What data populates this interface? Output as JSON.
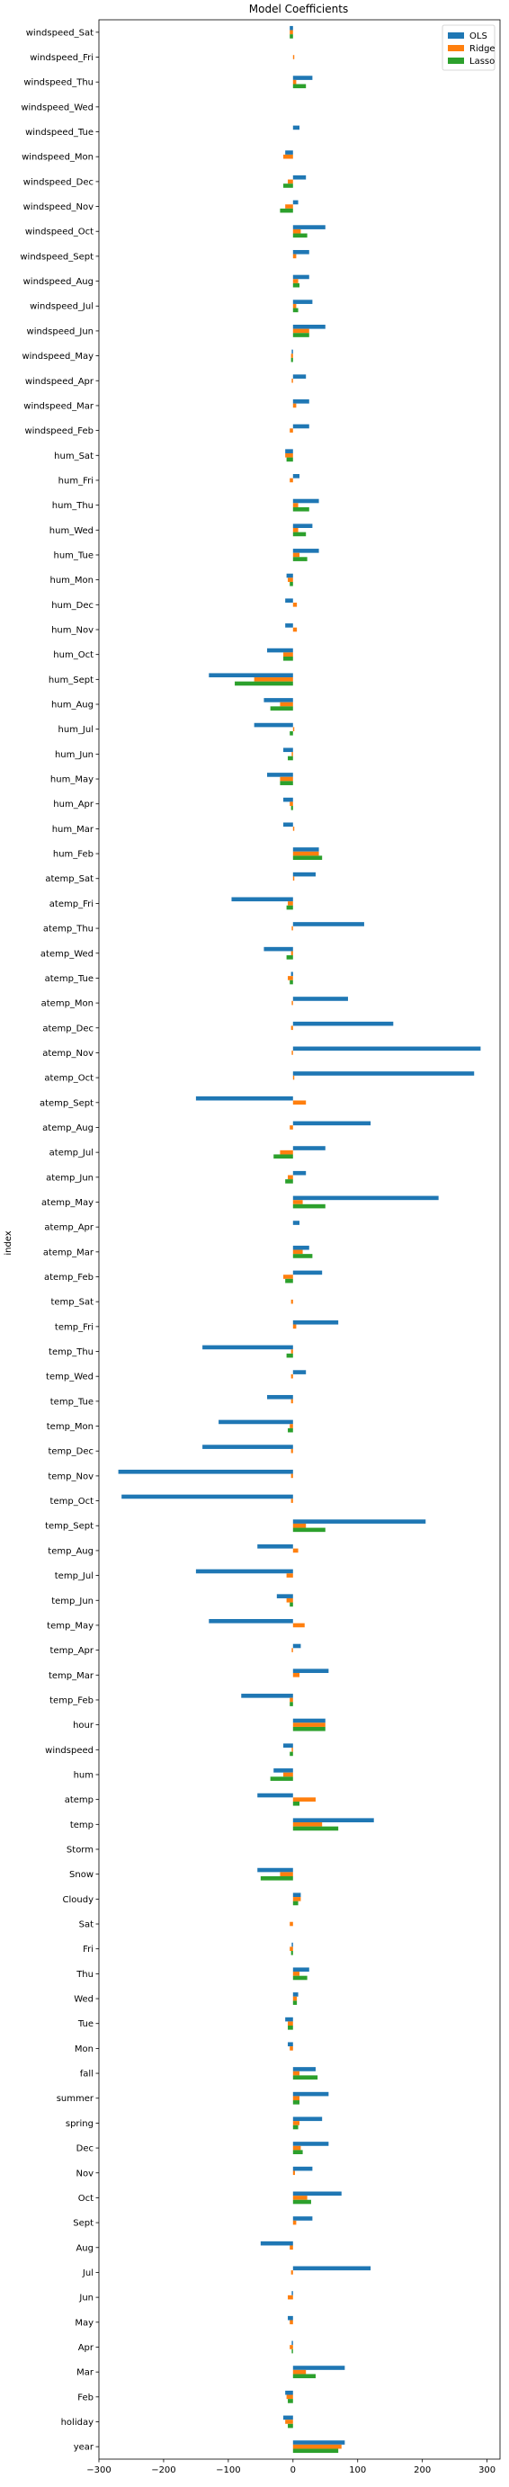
{
  "chart_data": {
    "type": "bar",
    "orientation": "horizontal",
    "title": "Model Coefficients",
    "ylabel": "index",
    "xlabel": "",
    "xlim": [
      -300,
      320
    ],
    "xticks": [
      -300,
      -200,
      -100,
      0,
      100,
      200,
      300
    ],
    "grid": false,
    "legend_position": "top-right",
    "colors": {
      "OLS": "#1f77b4",
      "Ridge": "#ff7f0e",
      "Lasso": "#2ca02c"
    },
    "categories": [
      "year",
      "holiday",
      "Feb",
      "Mar",
      "Apr",
      "May",
      "Jun",
      "Jul",
      "Aug",
      "Sept",
      "Oct",
      "Nov",
      "Dec",
      "spring",
      "summer",
      "fall",
      "Mon",
      "Tue",
      "Wed",
      "Thu",
      "Fri",
      "Sat",
      "Cloudy",
      "Snow",
      "Storm",
      "temp",
      "atemp",
      "hum",
      "windspeed",
      "hour",
      "temp_Feb",
      "temp_Mar",
      "temp_Apr",
      "temp_May",
      "temp_Jun",
      "temp_Jul",
      "temp_Aug",
      "temp_Sept",
      "temp_Oct",
      "temp_Nov",
      "temp_Dec",
      "temp_Mon",
      "temp_Tue",
      "temp_Wed",
      "temp_Thu",
      "temp_Fri",
      "temp_Sat",
      "atemp_Feb",
      "atemp_Mar",
      "atemp_Apr",
      "atemp_May",
      "atemp_Jun",
      "atemp_Jul",
      "atemp_Aug",
      "atemp_Sept",
      "atemp_Oct",
      "atemp_Nov",
      "atemp_Dec",
      "atemp_Mon",
      "atemp_Tue",
      "atemp_Wed",
      "atemp_Thu",
      "atemp_Fri",
      "atemp_Sat",
      "hum_Feb",
      "hum_Mar",
      "hum_Apr",
      "hum_May",
      "hum_Jun",
      "hum_Jul",
      "hum_Aug",
      "hum_Sept",
      "hum_Oct",
      "hum_Nov",
      "hum_Dec",
      "hum_Mon",
      "hum_Tue",
      "hum_Wed",
      "hum_Thu",
      "hum_Fri",
      "hum_Sat",
      "windspeed_Feb",
      "windspeed_Mar",
      "windspeed_Apr",
      "windspeed_May",
      "windspeed_Jun",
      "windspeed_Jul",
      "windspeed_Aug",
      "windspeed_Sept",
      "windspeed_Oct",
      "windspeed_Nov",
      "windspeed_Dec",
      "windspeed_Mon",
      "windspeed_Tue",
      "windspeed_Wed",
      "windspeed_Thu",
      "windspeed_Fri",
      "windspeed_Sat"
    ],
    "series": [
      {
        "name": "OLS",
        "values": [
          80,
          -15,
          -12,
          80,
          -2,
          -8,
          -2,
          120,
          -50,
          30,
          75,
          30,
          55,
          45,
          55,
          35,
          -8,
          -12,
          8,
          25,
          -2,
          0,
          12,
          -55,
          0,
          125,
          -55,
          -30,
          -15,
          50,
          -80,
          55,
          12,
          -130,
          -25,
          -150,
          -55,
          205,
          -265,
          -270,
          -140,
          -115,
          -40,
          20,
          -140,
          70,
          0,
          45,
          25,
          10,
          225,
          20,
          50,
          120,
          -150,
          280,
          290,
          155,
          85,
          -3,
          -45,
          110,
          -95,
          35,
          40,
          -15,
          -15,
          -40,
          -15,
          -60,
          -45,
          -130,
          -40,
          -12,
          -12,
          -10,
          40,
          30,
          40,
          10,
          -12,
          25,
          25,
          20,
          -2,
          50,
          30,
          25,
          25,
          50,
          8,
          20,
          -12,
          10,
          0,
          30,
          0,
          -5
        ]
      },
      {
        "name": "Ridge",
        "values": [
          75,
          -12,
          -10,
          20,
          -5,
          -5,
          -8,
          -3,
          -5,
          5,
          22,
          3,
          12,
          10,
          10,
          10,
          -5,
          -8,
          6,
          10,
          -5,
          -5,
          12,
          -20,
          0,
          45,
          35,
          -15,
          -2,
          50,
          -5,
          10,
          -2,
          18,
          -10,
          -10,
          8,
          20,
          -3,
          -3,
          -3,
          -5,
          -3,
          -3,
          -3,
          5,
          -3,
          -15,
          15,
          0,
          15,
          -8,
          -20,
          -5,
          20,
          2,
          -2,
          -3,
          -2,
          -8,
          -3,
          -2,
          -8,
          2,
          40,
          2,
          -5,
          -20,
          -2,
          2,
          -20,
          -60,
          -15,
          6,
          6,
          -8,
          10,
          8,
          8,
          -5,
          -12,
          -5,
          5,
          -2,
          -3,
          25,
          5,
          8,
          5,
          12,
          -12,
          -8,
          -15,
          0,
          0,
          5,
          2,
          -5
        ]
      },
      {
        "name": "Lasso",
        "values": [
          70,
          -8,
          -8,
          35,
          -2,
          0,
          0,
          0,
          0,
          0,
          28,
          0,
          15,
          8,
          10,
          38,
          0,
          -8,
          6,
          22,
          -3,
          0,
          8,
          -50,
          0,
          70,
          10,
          -35,
          -5,
          50,
          -5,
          0,
          0,
          0,
          -5,
          0,
          0,
          50,
          0,
          0,
          0,
          -8,
          0,
          0,
          -10,
          0,
          0,
          -12,
          30,
          0,
          50,
          -12,
          -30,
          0,
          0,
          0,
          0,
          0,
          0,
          -5,
          -10,
          0,
          -10,
          0,
          45,
          0,
          -3,
          -20,
          -8,
          -5,
          -35,
          -90,
          -15,
          0,
          0,
          -5,
          22,
          20,
          25,
          0,
          -10,
          0,
          0,
          0,
          -3,
          25,
          8,
          10,
          0,
          22,
          -20,
          -15,
          0,
          0,
          0,
          20,
          0,
          -5
        ]
      }
    ]
  }
}
